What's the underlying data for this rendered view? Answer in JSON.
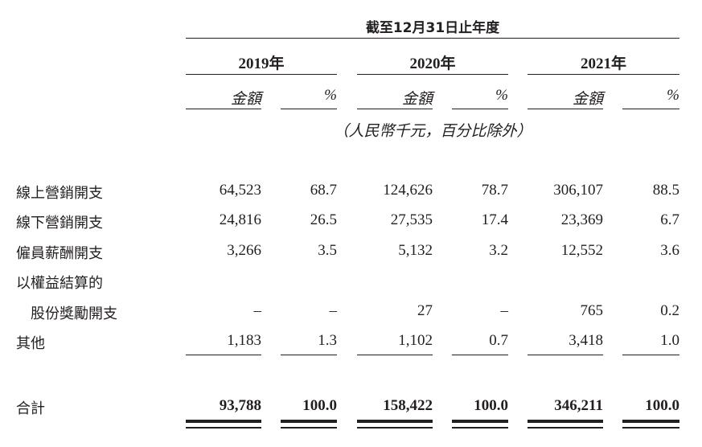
{
  "header": {
    "period": "截至12月31日止年度",
    "years": [
      "2019年",
      "2020年",
      "2021年"
    ],
    "amount_label": "金額",
    "percent_label": "%",
    "unit_note": "（人民幣千元，百分比除外）"
  },
  "rows": [
    {
      "label": "線上營銷開支",
      "values": [
        "64,523",
        "68.7",
        "124,626",
        "78.7",
        "306,107",
        "88.5"
      ]
    },
    {
      "label": "線下營銷開支",
      "values": [
        "24,816",
        "26.5",
        "27,535",
        "17.4",
        "23,369",
        "6.7"
      ]
    },
    {
      "label": "僱員薪酬開支",
      "values": [
        "3,266",
        "3.5",
        "5,132",
        "3.2",
        "12,552",
        "3.6"
      ]
    },
    {
      "label": "以權益結算的",
      "values": []
    },
    {
      "label": "股份獎勵開支",
      "values": [
        "–",
        "–",
        "27",
        "–",
        "765",
        "0.2"
      ]
    },
    {
      "label": "其他",
      "values": [
        "1,183",
        "1.3",
        "1,102",
        "0.7",
        "3,418",
        "1.0"
      ]
    }
  ],
  "total": {
    "label": "合計",
    "values": [
      "93,788",
      "100.0",
      "158,422",
      "100.0",
      "346,211",
      "100.0"
    ]
  }
}
